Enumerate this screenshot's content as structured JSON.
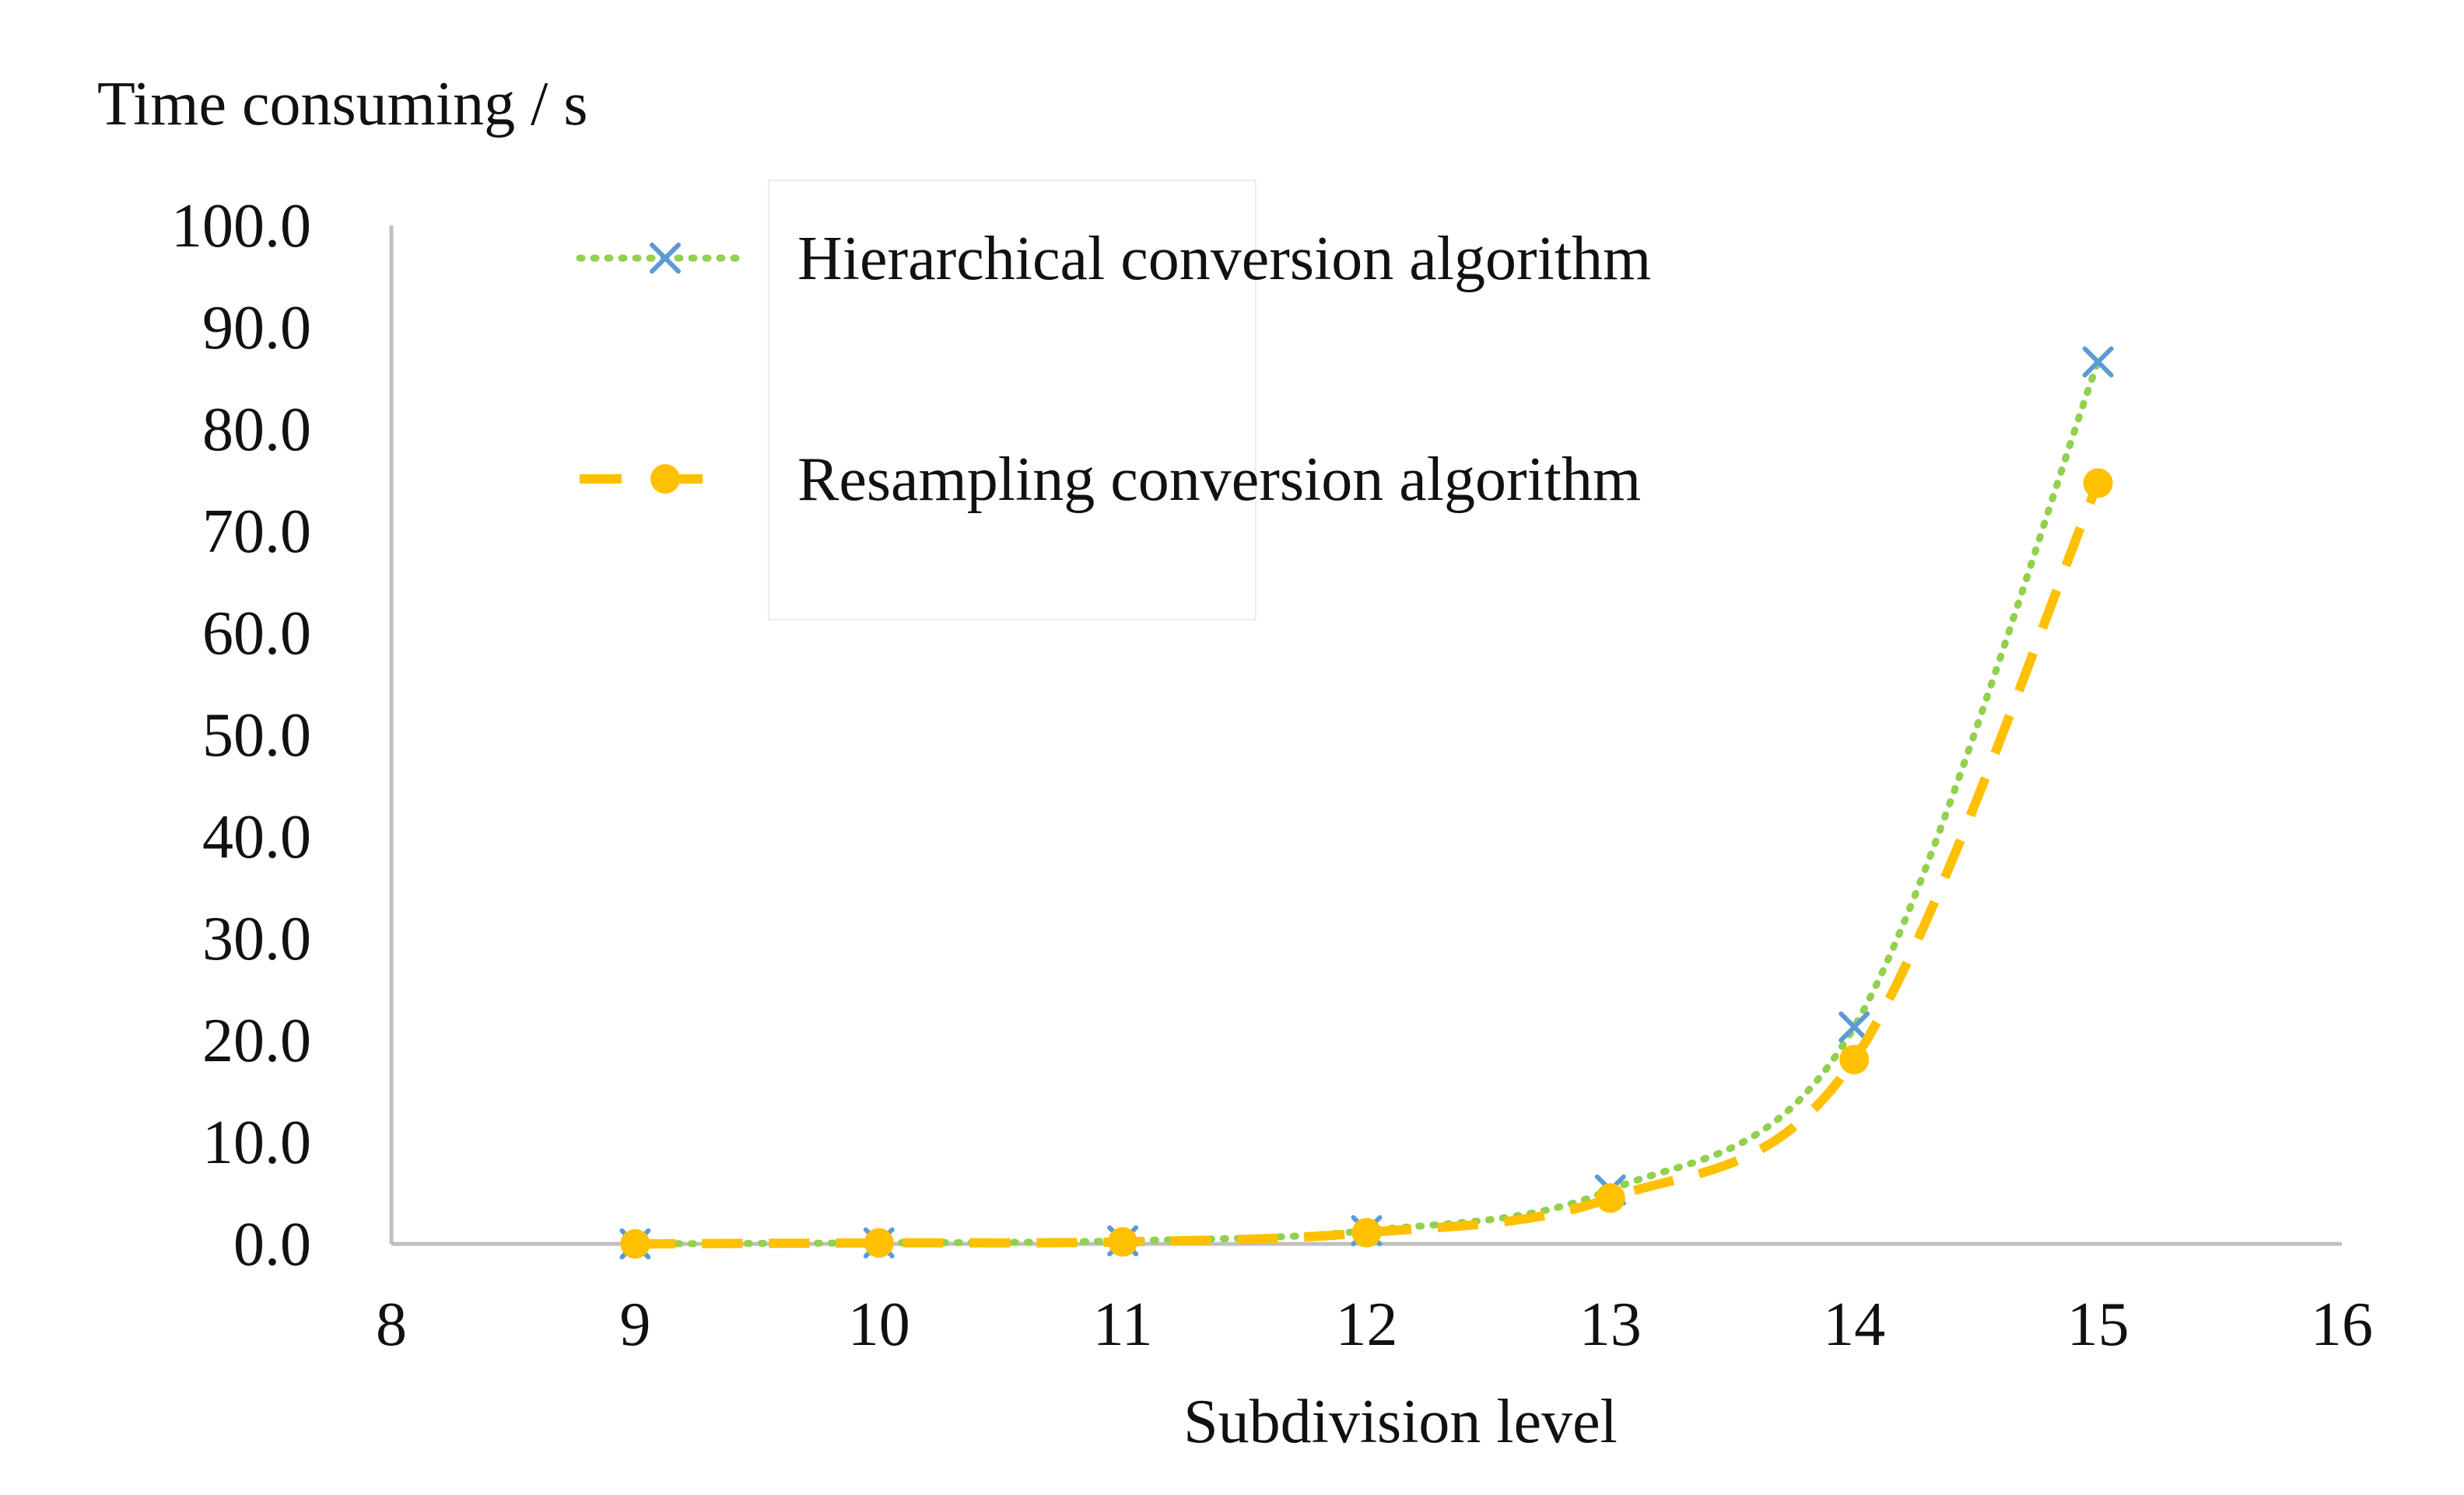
{
  "chart_data": {
    "type": "line",
    "title": "",
    "ylabel": "Time consuming / s",
    "xlabel": "Subdivision level",
    "xlim": [
      8,
      16
    ],
    "ylim": [
      0,
      100
    ],
    "x_ticks": [
      8,
      9,
      10,
      11,
      12,
      13,
      14,
      15,
      16
    ],
    "y_ticks": [
      0,
      10,
      20,
      30,
      40,
      50,
      60,
      70,
      80,
      90,
      100
    ],
    "y_tick_labels": [
      "0.0",
      "10.0",
      "20.0",
      "30.0",
      "40.0",
      "50.0",
      "60.0",
      "70.0",
      "80.0",
      "90.0",
      "100.0"
    ],
    "grid": false,
    "legend_position": "top-center",
    "series": [
      {
        "name": "Hierarchical conversion algorithm",
        "x": [
          9,
          10,
          11,
          12,
          13,
          14,
          15
        ],
        "values": [
          0.0,
          0.1,
          0.3,
          1.3,
          5.3,
          21.3,
          86.6
        ],
        "line_color": "#92D050",
        "line_style": "dotted",
        "marker": "x",
        "marker_color": "#5B9BD5",
        "smooth": true
      },
      {
        "name": "Resampling conversion algorithm",
        "x": [
          9,
          10,
          11,
          12,
          13,
          14,
          15
        ],
        "values": [
          0.0,
          0.1,
          0.2,
          1.1,
          4.5,
          18.1,
          74.7
        ],
        "line_color": "#FFC000",
        "line_style": "dashed",
        "marker": "circle",
        "marker_color": "#FFC000",
        "smooth": true
      }
    ]
  }
}
